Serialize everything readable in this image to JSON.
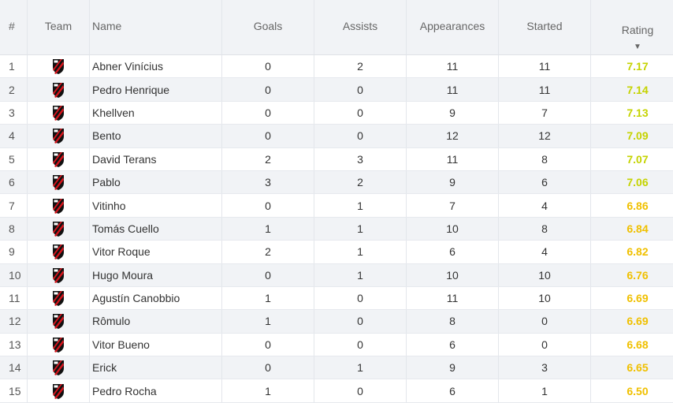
{
  "header": {
    "rank": "#",
    "team": "Team",
    "name": "Name",
    "goals": "Goals",
    "assists": "Assists",
    "appearances": "Appearances",
    "started": "Started",
    "rating": "Rating",
    "sort_icon": "sort-descending-icon"
  },
  "team_icon": "club-crest-icon",
  "colors": {
    "rating_high": "#c5d300",
    "rating_mid": "#f0c000",
    "crest_red": "#d6141c",
    "crest_black": "#111111"
  },
  "rows": [
    {
      "rank": "1",
      "name": "Abner Vinícius",
      "goals": "0",
      "assists": "2",
      "appearances": "11",
      "started": "11",
      "rating": "7.17"
    },
    {
      "rank": "2",
      "name": "Pedro Henrique",
      "goals": "0",
      "assists": "0",
      "appearances": "11",
      "started": "11",
      "rating": "7.14"
    },
    {
      "rank": "3",
      "name": "Khellven",
      "goals": "0",
      "assists": "0",
      "appearances": "9",
      "started": "7",
      "rating": "7.13"
    },
    {
      "rank": "4",
      "name": "Bento",
      "goals": "0",
      "assists": "0",
      "appearances": "12",
      "started": "12",
      "rating": "7.09"
    },
    {
      "rank": "5",
      "name": "David Terans",
      "goals": "2",
      "assists": "3",
      "appearances": "11",
      "started": "8",
      "rating": "7.07"
    },
    {
      "rank": "6",
      "name": "Pablo",
      "goals": "3",
      "assists": "2",
      "appearances": "9",
      "started": "6",
      "rating": "7.06"
    },
    {
      "rank": "7",
      "name": "Vitinho",
      "goals": "0",
      "assists": "1",
      "appearances": "7",
      "started": "4",
      "rating": "6.86"
    },
    {
      "rank": "8",
      "name": "Tomás Cuello",
      "goals": "1",
      "assists": "1",
      "appearances": "10",
      "started": "8",
      "rating": "6.84"
    },
    {
      "rank": "9",
      "name": "Vitor Roque",
      "goals": "2",
      "assists": "1",
      "appearances": "6",
      "started": "4",
      "rating": "6.82"
    },
    {
      "rank": "10",
      "name": "Hugo Moura",
      "goals": "0",
      "assists": "1",
      "appearances": "10",
      "started": "10",
      "rating": "6.76"
    },
    {
      "rank": "11",
      "name": "Agustín Canobbio",
      "goals": "1",
      "assists": "0",
      "appearances": "11",
      "started": "10",
      "rating": "6.69"
    },
    {
      "rank": "12",
      "name": "Rômulo",
      "goals": "1",
      "assists": "0",
      "appearances": "8",
      "started": "0",
      "rating": "6.69"
    },
    {
      "rank": "13",
      "name": "Vitor Bueno",
      "goals": "0",
      "assists": "0",
      "appearances": "6",
      "started": "0",
      "rating": "6.68"
    },
    {
      "rank": "14",
      "name": "Erick",
      "goals": "0",
      "assists": "1",
      "appearances": "9",
      "started": "3",
      "rating": "6.65"
    },
    {
      "rank": "15",
      "name": "Pedro Rocha",
      "goals": "1",
      "assists": "0",
      "appearances": "6",
      "started": "1",
      "rating": "6.50"
    }
  ]
}
